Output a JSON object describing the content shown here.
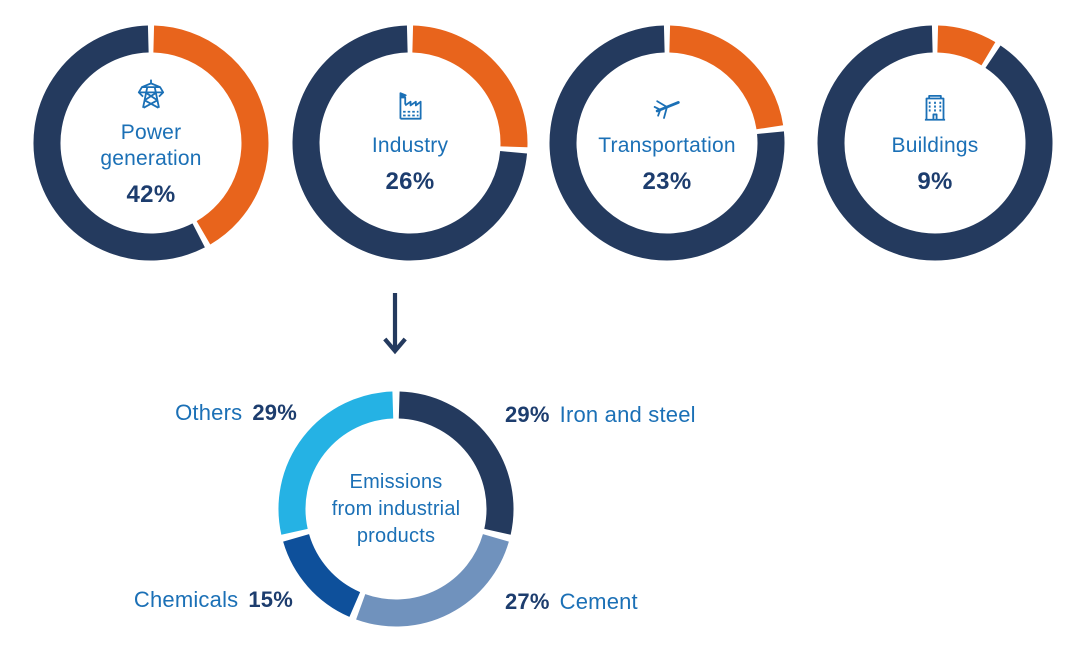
{
  "palette": {
    "ring_navy": "#243a5e",
    "highlight_orange": "#e8641c",
    "label_blue": "#1b70b6",
    "value_navy": "#1d3d6e",
    "iron_and_steel_navy": "#243a5e",
    "cement_slate_blue": "#7092bd",
    "chemicals_blue": "#0e509b",
    "others_cyan": "#25b2e4"
  },
  "connector": {
    "icon": "arrow-down-icon"
  },
  "chart_data": [
    {
      "type": "pie",
      "variant": "donut",
      "label": "Power generation",
      "value_label": "42%",
      "icon": "power-transmission-tower-icon",
      "segments": [
        {
          "name": "Power generation",
          "value": 42,
          "color": "#e8641c"
        },
        {
          "name": "Remainder",
          "value": 58,
          "color": "#243a5e"
        }
      ]
    },
    {
      "type": "pie",
      "variant": "donut",
      "label": "Industry",
      "value_label": "26%",
      "icon": "factory-icon",
      "segments": [
        {
          "name": "Industry",
          "value": 26,
          "color": "#e8641c"
        },
        {
          "name": "Remainder",
          "value": 74,
          "color": "#243a5e"
        }
      ]
    },
    {
      "type": "pie",
      "variant": "donut",
      "label": "Transportation",
      "value_label": "23%",
      "icon": "airplane-icon",
      "segments": [
        {
          "name": "Transportation",
          "value": 23,
          "color": "#e8641c"
        },
        {
          "name": "Remainder",
          "value": 77,
          "color": "#243a5e"
        }
      ]
    },
    {
      "type": "pie",
      "variant": "donut",
      "label": "Buildings",
      "value_label": "9%",
      "icon": "office-building-icon",
      "segments": [
        {
          "name": "Buildings",
          "value": 9,
          "color": "#e8641c"
        },
        {
          "name": "Remainder",
          "value": 91,
          "color": "#243a5e"
        }
      ]
    },
    {
      "type": "pie",
      "variant": "donut",
      "center_label_lines": [
        "Emissions",
        "from industrial",
        "products"
      ],
      "segments": [
        {
          "name": "Iron and steel",
          "value": 29,
          "value_label": "29%",
          "color": "#243a5e"
        },
        {
          "name": "Cement",
          "value": 27,
          "value_label": "27%",
          "color": "#7092bd"
        },
        {
          "name": "Chemicals",
          "value": 15,
          "value_label": "15%",
          "color": "#0e509b"
        },
        {
          "name": "Others",
          "value": 29,
          "value_label": "29%",
          "color": "#25b2e4"
        }
      ]
    }
  ]
}
